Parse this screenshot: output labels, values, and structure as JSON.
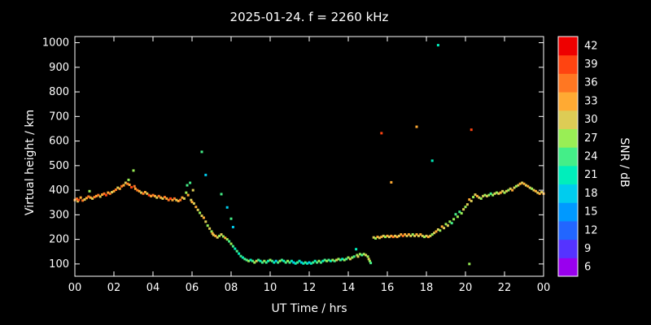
{
  "title": "2025-01-24. f = 2260 kHz",
  "chart_data": {
    "type": "scatter",
    "title": "2025-01-24. f = 2260 kHz",
    "xlabel": "UT Time / hrs",
    "ylabel": "Virtual height / km",
    "colorbar_label": "SNR / dB",
    "xlim": [
      0,
      24
    ],
    "ylim": [
      50,
      1025
    ],
    "background": "#000000",
    "axis_color": "#ffffff",
    "marker_size": 3,
    "x_ticks": {
      "values": [
        0,
        2,
        4,
        6,
        8,
        10,
        12,
        14,
        16,
        18,
        20,
        22,
        24
      ],
      "labels": [
        "00",
        "02",
        "04",
        "06",
        "08",
        "10",
        "12",
        "14",
        "16",
        "18",
        "20",
        "22",
        "00"
      ]
    },
    "y_ticks": {
      "values": [
        100,
        200,
        300,
        400,
        500,
        600,
        700,
        800,
        900,
        1000
      ],
      "labels": [
        "100",
        "200",
        "300",
        "400",
        "500",
        "600",
        "700",
        "800",
        "900",
        "1000"
      ]
    },
    "colorbar": {
      "ticks": [
        6,
        9,
        12,
        15,
        18,
        21,
        24,
        27,
        30,
        33,
        36,
        39,
        42
      ],
      "colors": {
        "6": "#9900ee",
        "9": "#5533ff",
        "12": "#2266ff",
        "15": "#0099ff",
        "18": "#00ccee",
        "21": "#00eebb",
        "24": "#44ee88",
        "27": "#99ee55",
        "30": "#ddcc55",
        "33": "#ffaa33",
        "36": "#ff7722",
        "39": "#ff4411",
        "42": "#ee0000"
      }
    },
    "points": [
      [
        0.0,
        360,
        33
      ],
      [
        0.1,
        365,
        36
      ],
      [
        0.15,
        355,
        30
      ],
      [
        0.2,
        360,
        39
      ],
      [
        0.3,
        370,
        33
      ],
      [
        0.4,
        358,
        36
      ],
      [
        0.5,
        362,
        30
      ],
      [
        0.6,
        368,
        33
      ],
      [
        0.7,
        374,
        36
      ],
      [
        0.75,
        396,
        27
      ],
      [
        0.8,
        370,
        33
      ],
      [
        0.9,
        366,
        30
      ],
      [
        1.0,
        372,
        36
      ],
      [
        1.1,
        376,
        33
      ],
      [
        1.2,
        380,
        36
      ],
      [
        1.3,
        374,
        30
      ],
      [
        1.4,
        382,
        33
      ],
      [
        1.5,
        386,
        36
      ],
      [
        1.6,
        380,
        39
      ],
      [
        1.7,
        390,
        33
      ],
      [
        1.8,
        386,
        36
      ],
      [
        1.9,
        392,
        30
      ],
      [
        2.0,
        396,
        33
      ],
      [
        2.1,
        402,
        36
      ],
      [
        2.2,
        410,
        30
      ],
      [
        2.3,
        406,
        33
      ],
      [
        2.4,
        416,
        36
      ],
      [
        2.5,
        420,
        33
      ],
      [
        2.6,
        430,
        30
      ],
      [
        2.7,
        426,
        36
      ],
      [
        2.75,
        442,
        27
      ],
      [
        2.8,
        422,
        33
      ],
      [
        2.9,
        412,
        39
      ],
      [
        3.0,
        480,
        27
      ],
      [
        3.05,
        416,
        36
      ],
      [
        3.1,
        406,
        33
      ],
      [
        3.2,
        400,
        36
      ],
      [
        3.3,
        396,
        33
      ],
      [
        3.4,
        390,
        30
      ],
      [
        3.5,
        386,
        36
      ],
      [
        3.6,
        392,
        33
      ],
      [
        3.7,
        386,
        30
      ],
      [
        3.8,
        380,
        39
      ],
      [
        3.9,
        376,
        33
      ],
      [
        4.0,
        380,
        36
      ],
      [
        4.1,
        376,
        33
      ],
      [
        4.2,
        370,
        30
      ],
      [
        4.3,
        376,
        36
      ],
      [
        4.4,
        370,
        33
      ],
      [
        4.5,
        366,
        30
      ],
      [
        4.6,
        372,
        36
      ],
      [
        4.7,
        366,
        33
      ],
      [
        4.8,
        360,
        36
      ],
      [
        4.9,
        366,
        39
      ],
      [
        5.0,
        360,
        33
      ],
      [
        5.1,
        366,
        36
      ],
      [
        5.2,
        360,
        30
      ],
      [
        5.3,
        356,
        33
      ],
      [
        5.4,
        360,
        36
      ],
      [
        5.5,
        370,
        33
      ],
      [
        5.6,
        366,
        30
      ],
      [
        5.7,
        390,
        27
      ],
      [
        5.75,
        420,
        24
      ],
      [
        5.8,
        380,
        33
      ],
      [
        5.9,
        430,
        24
      ],
      [
        5.95,
        360,
        30
      ],
      [
        6.0,
        352,
        33
      ],
      [
        6.05,
        400,
        30
      ],
      [
        6.1,
        346,
        30
      ],
      [
        6.2,
        332,
        33
      ],
      [
        6.3,
        320,
        30
      ],
      [
        6.4,
        308,
        27
      ],
      [
        6.5,
        556,
        24
      ],
      [
        6.5,
        296,
        30
      ],
      [
        6.6,
        288,
        33
      ],
      [
        6.7,
        462,
        18
      ],
      [
        6.7,
        272,
        30
      ],
      [
        6.8,
        256,
        27
      ],
      [
        6.9,
        244,
        30
      ],
      [
        7.0,
        232,
        27
      ],
      [
        7.05,
        224,
        33
      ],
      [
        7.1,
        218,
        30
      ],
      [
        7.2,
        214,
        33
      ],
      [
        7.3,
        208,
        30
      ],
      [
        7.4,
        214,
        27
      ],
      [
        7.5,
        384,
        24
      ],
      [
        7.5,
        220,
        30
      ],
      [
        7.6,
        212,
        27
      ],
      [
        7.7,
        206,
        33
      ],
      [
        7.8,
        330,
        18
      ],
      [
        7.8,
        200,
        27
      ],
      [
        7.9,
        192,
        24
      ],
      [
        8.0,
        284,
        24
      ],
      [
        8.0,
        182,
        27
      ],
      [
        8.1,
        250,
        18
      ],
      [
        8.1,
        172,
        24
      ],
      [
        8.2,
        162,
        21
      ],
      [
        8.3,
        152,
        24
      ],
      [
        8.4,
        142,
        21
      ],
      [
        8.5,
        132,
        24
      ],
      [
        8.6,
        126,
        21
      ],
      [
        8.7,
        120,
        24
      ],
      [
        8.8,
        116,
        24
      ],
      [
        8.9,
        112,
        27
      ],
      [
        9.0,
        116,
        21
      ],
      [
        9.1,
        112,
        24
      ],
      [
        9.2,
        106,
        27
      ],
      [
        9.3,
        112,
        30
      ],
      [
        9.4,
        116,
        24
      ],
      [
        9.5,
        112,
        21
      ],
      [
        9.6,
        106,
        24
      ],
      [
        9.7,
        112,
        27
      ],
      [
        9.8,
        106,
        24
      ],
      [
        9.9,
        112,
        21
      ],
      [
        10.0,
        116,
        27
      ],
      [
        10.1,
        112,
        24
      ],
      [
        10.2,
        106,
        21
      ],
      [
        10.3,
        112,
        18
      ],
      [
        10.4,
        106,
        24
      ],
      [
        10.5,
        112,
        27
      ],
      [
        10.6,
        116,
        24
      ],
      [
        10.7,
        112,
        21
      ],
      [
        10.8,
        106,
        24
      ],
      [
        10.9,
        112,
        27
      ],
      [
        11.0,
        106,
        24
      ],
      [
        11.1,
        112,
        21
      ],
      [
        11.2,
        106,
        18
      ],
      [
        11.3,
        102,
        21
      ],
      [
        11.4,
        106,
        24
      ],
      [
        11.5,
        112,
        21
      ],
      [
        11.6,
        106,
        18
      ],
      [
        11.7,
        102,
        21
      ],
      [
        11.8,
        106,
        24
      ],
      [
        11.9,
        102,
        21
      ],
      [
        12.0,
        106,
        18
      ],
      [
        12.1,
        102,
        21
      ],
      [
        12.2,
        106,
        24
      ],
      [
        12.3,
        112,
        21
      ],
      [
        12.4,
        106,
        24
      ],
      [
        12.5,
        112,
        27
      ],
      [
        12.6,
        106,
        24
      ],
      [
        12.7,
        112,
        21
      ],
      [
        12.8,
        116,
        24
      ],
      [
        12.9,
        112,
        27
      ],
      [
        13.0,
        116,
        24
      ],
      [
        13.1,
        112,
        21
      ],
      [
        13.2,
        116,
        27
      ],
      [
        13.3,
        112,
        24
      ],
      [
        13.4,
        116,
        30
      ],
      [
        13.5,
        120,
        27
      ],
      [
        13.6,
        116,
        24
      ],
      [
        13.7,
        120,
        21
      ],
      [
        13.8,
        116,
        27
      ],
      [
        13.9,
        120,
        24
      ],
      [
        14.0,
        126,
        27
      ],
      [
        14.1,
        120,
        30
      ],
      [
        14.2,
        126,
        27
      ],
      [
        14.3,
        130,
        24
      ],
      [
        14.4,
        160,
        21
      ],
      [
        14.45,
        136,
        27
      ],
      [
        14.5,
        130,
        30
      ],
      [
        14.6,
        140,
        27
      ],
      [
        14.7,
        136,
        24
      ],
      [
        14.8,
        140,
        27
      ],
      [
        14.9,
        136,
        30
      ],
      [
        15.0,
        130,
        27
      ],
      [
        15.05,
        120,
        30
      ],
      [
        15.1,
        112,
        27
      ],
      [
        15.15,
        104,
        24
      ],
      [
        15.3,
        208,
        30
      ],
      [
        15.4,
        204,
        27
      ],
      [
        15.5,
        210,
        33
      ],
      [
        15.6,
        206,
        30
      ],
      [
        15.7,
        632,
        39
      ],
      [
        15.7,
        210,
        33
      ],
      [
        15.8,
        214,
        30
      ],
      [
        15.9,
        210,
        27
      ],
      [
        16.0,
        214,
        33
      ],
      [
        16.1,
        210,
        30
      ],
      [
        16.2,
        432,
        33
      ],
      [
        16.2,
        214,
        33
      ],
      [
        16.3,
        210,
        36
      ],
      [
        16.4,
        214,
        30
      ],
      [
        16.5,
        210,
        33
      ],
      [
        16.6,
        214,
        30
      ],
      [
        16.7,
        220,
        33
      ],
      [
        16.8,
        214,
        36
      ],
      [
        16.9,
        220,
        33
      ],
      [
        17.0,
        214,
        30
      ],
      [
        17.1,
        220,
        33
      ],
      [
        17.2,
        214,
        30
      ],
      [
        17.3,
        220,
        27
      ],
      [
        17.4,
        214,
        30
      ],
      [
        17.5,
        658,
        33
      ],
      [
        17.5,
        220,
        33
      ],
      [
        17.6,
        214,
        30
      ],
      [
        17.7,
        220,
        33
      ],
      [
        17.8,
        214,
        30
      ],
      [
        17.9,
        210,
        27
      ],
      [
        18.0,
        214,
        30
      ],
      [
        18.1,
        210,
        33
      ],
      [
        18.2,
        214,
        30
      ],
      [
        18.3,
        520,
        21
      ],
      [
        18.3,
        220,
        27
      ],
      [
        18.4,
        226,
        30
      ],
      [
        18.5,
        232,
        33
      ],
      [
        18.6,
        990,
        21
      ],
      [
        18.6,
        240,
        30
      ],
      [
        18.7,
        236,
        27
      ],
      [
        18.8,
        252,
        33
      ],
      [
        18.9,
        246,
        30
      ],
      [
        19.0,
        262,
        27
      ],
      [
        19.1,
        256,
        30
      ],
      [
        19.2,
        272,
        27
      ],
      [
        19.3,
        266,
        24
      ],
      [
        19.4,
        282,
        27
      ],
      [
        19.5,
        302,
        24
      ],
      [
        19.6,
        292,
        27
      ],
      [
        19.7,
        312,
        24
      ],
      [
        19.8,
        306,
        27
      ],
      [
        19.9,
        322,
        30
      ],
      [
        20.0,
        332,
        27
      ],
      [
        20.1,
        342,
        30
      ],
      [
        20.2,
        100,
        27
      ],
      [
        20.2,
        362,
        33
      ],
      [
        20.3,
        646,
        39
      ],
      [
        20.3,
        356,
        30
      ],
      [
        20.4,
        372,
        27
      ],
      [
        20.5,
        382,
        30
      ],
      [
        20.6,
        376,
        33
      ],
      [
        20.7,
        370,
        30
      ],
      [
        20.8,
        366,
        27
      ],
      [
        20.9,
        376,
        30
      ],
      [
        21.0,
        380,
        27
      ],
      [
        21.1,
        376,
        30
      ],
      [
        21.2,
        380,
        27
      ],
      [
        21.3,
        386,
        24
      ],
      [
        21.4,
        380,
        27
      ],
      [
        21.5,
        386,
        30
      ],
      [
        21.6,
        390,
        27
      ],
      [
        21.7,
        386,
        30
      ],
      [
        21.8,
        390,
        33
      ],
      [
        21.9,
        396,
        30
      ],
      [
        22.0,
        390,
        27
      ],
      [
        22.1,
        396,
        30
      ],
      [
        22.2,
        400,
        27
      ],
      [
        22.3,
        406,
        30
      ],
      [
        22.4,
        400,
        33
      ],
      [
        22.5,
        410,
        30
      ],
      [
        22.6,
        416,
        27
      ],
      [
        22.7,
        420,
        30
      ],
      [
        22.8,
        426,
        33
      ],
      [
        22.9,
        430,
        30
      ],
      [
        23.0,
        426,
        33
      ],
      [
        23.1,
        420,
        30
      ],
      [
        23.2,
        416,
        33
      ],
      [
        23.3,
        410,
        30
      ],
      [
        23.4,
        406,
        27
      ],
      [
        23.5,
        400,
        30
      ],
      [
        23.6,
        396,
        33
      ],
      [
        23.7,
        390,
        30
      ],
      [
        23.8,
        386,
        33
      ],
      [
        23.9,
        392,
        30
      ],
      [
        24.0,
        386,
        33
      ]
    ]
  }
}
